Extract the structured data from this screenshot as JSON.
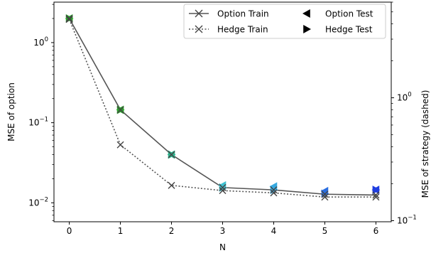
{
  "chart_data": {
    "type": "line",
    "xlabel": "N",
    "ylabel_left": "MSE of option",
    "ylabel_right": "MSE of strategy (dashed)",
    "x_ticks": [
      "0",
      "1",
      "2",
      "3",
      "4",
      "5",
      "6"
    ],
    "x_range": [
      -0.3,
      6.3
    ],
    "y_left_scale": "log",
    "y_left_range": [
      0.0058,
      3.2
    ],
    "y_left_ticks": [
      {
        "value": 1,
        "mantissa": "10",
        "exp": "0"
      },
      {
        "value": 0.1,
        "mantissa": "10",
        "exp": "−1"
      },
      {
        "value": 0.01,
        "mantissa": "10",
        "exp": "−2"
      }
    ],
    "y_right_scale": "log",
    "y_right_range": [
      0.098,
      6.0
    ],
    "y_right_ticks": [
      {
        "value": 1,
        "mantissa": "10",
        "exp": "0"
      },
      {
        "value": 0.1,
        "mantissa": "10",
        "exp": "−1"
      }
    ],
    "grid": false,
    "legend_position": "top-right",
    "legend": [
      {
        "label": "Option Train",
        "marker": "x",
        "line": "solid"
      },
      {
        "label": "Hedge Train",
        "marker": "x",
        "line": "dotted"
      },
      {
        "label": "Option Test",
        "marker": "triangle-left",
        "line": "none"
      },
      {
        "label": "Hedge Test",
        "marker": "triangle-right",
        "line": "none"
      }
    ],
    "x": [
      0,
      1,
      2,
      3,
      4,
      5,
      6
    ],
    "series": [
      {
        "name": "Option Train",
        "axis": "left",
        "style": "solid",
        "values": [
          2.0,
          0.145,
          0.04,
          0.0155,
          0.0145,
          0.0128,
          0.0125
        ]
      },
      {
        "name": "Hedge Train",
        "axis": "left",
        "style": "dotted",
        "values": [
          1.95,
          0.053,
          0.0165,
          0.0142,
          0.0133,
          0.0118,
          0.0118
        ]
      },
      {
        "name": "Option Test",
        "axis": "left",
        "style": "points",
        "values": [
          2.0,
          0.145,
          0.04,
          0.0165,
          0.016,
          0.014,
          0.0145
        ]
      },
      {
        "name": "Hedge Test",
        "axis": "left",
        "style": "points",
        "values": [
          2.0,
          0.145,
          0.04,
          0.0155,
          0.0145,
          0.013,
          0.0145
        ]
      }
    ],
    "point_colors": [
      "#2ca02c",
      "#2ca02c",
      "#2bb08a",
      "#3fc1d0",
      "#36a9e0",
      "#2a6ee0",
      "#1f3de0"
    ]
  }
}
